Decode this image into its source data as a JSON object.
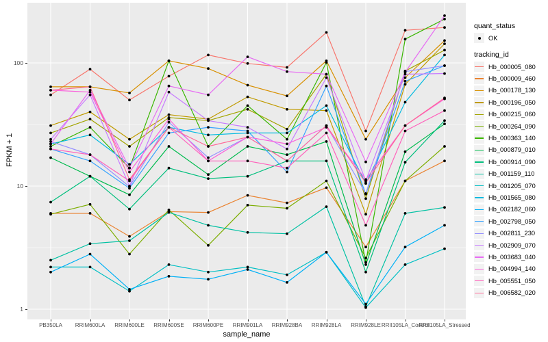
{
  "legend": {
    "quant_status_title": "quant_status",
    "quant_status_items": [
      {
        "label": "OK",
        "marker": "point",
        "color": "#000000"
      }
    ],
    "tracking_id_title": "tracking_id"
  },
  "colors": {
    "panel_bg": "#EBEBEB",
    "gridline": "#FFFFFF",
    "legend_key_bg": "#F2F2F2",
    "tick_label": "#4D4D4D",
    "point": "#000000"
  },
  "chart_data": {
    "type": "line",
    "title": "",
    "xlabel": "sample_name",
    "ylabel": "FPKM + 1",
    "yscale": "log10",
    "yticks": [
      1,
      10,
      100
    ],
    "ylim": [
      1,
      316
    ],
    "grid": true,
    "legend_position": "right",
    "point_marker": {
      "shape": "point",
      "color": "#000000",
      "meaning": "quant_status = OK"
    },
    "categories": [
      "PB350LA",
      "RRIM600LA",
      "RRIM600LE",
      "RRIM600SE",
      "RRIM600PE",
      "RRIM901LA",
      "RRIM928BA",
      "RRIM928LA",
      "RRIM928LE",
      "RRII105LA_Control",
      "RRII105LA_Stressed"
    ],
    "series": [
      {
        "name": "Hb_000005_080",
        "color": "#F8766D",
        "values": [
          55,
          89,
          50,
          78,
          116,
          99,
          92,
          177,
          28,
          184,
          194
        ]
      },
      {
        "name": "Hb_000009_460",
        "color": "#EA8331",
        "values": [
          6.0,
          6.0,
          3.9,
          6.2,
          6.1,
          8.4,
          7.3,
          9.7,
          3.2,
          11,
          16
        ]
      },
      {
        "name": "Hb_000178_130",
        "color": "#D89000",
        "values": [
          64,
          64,
          57,
          104,
          90,
          66,
          54,
          104,
          24,
          76,
          152
        ]
      },
      {
        "name": "Hb_000196_050",
        "color": "#C09B00",
        "values": [
          31,
          40,
          24,
          38,
          35,
          53,
          42,
          41,
          5.9,
          67,
          143
        ]
      },
      {
        "name": "Hb_000215_060",
        "color": "#A3A500",
        "values": [
          27,
          35,
          21,
          36,
          34,
          42,
          29,
          81,
          7.9,
          86,
          127
        ]
      },
      {
        "name": "Hb_000264_090",
        "color": "#7CAE00",
        "values": [
          5.9,
          7.1,
          2.8,
          6.4,
          3.3,
          7.0,
          6.6,
          11,
          2.6,
          11,
          21
        ]
      },
      {
        "name": "Hb_000363_140",
        "color": "#39B600",
        "values": [
          21,
          30,
          14,
          104,
          21,
          45,
          24,
          101,
          2.4,
          156,
          227
        ]
      },
      {
        "name": "Hb_000879_010",
        "color": "#00BB4E",
        "values": [
          17,
          12,
          8.5,
          21,
          12.4,
          21,
          18,
          23,
          2.3,
          19,
          32
        ]
      },
      {
        "name": "Hb_000914_090",
        "color": "#00BF7D",
        "values": [
          7.4,
          12,
          6.5,
          14,
          11.5,
          12,
          16,
          16,
          2.0,
          15.6,
          34
        ]
      },
      {
        "name": "Hb_001159_110",
        "color": "#00C1A3",
        "values": [
          2.5,
          3.4,
          3.6,
          6.1,
          4.8,
          4.2,
          4.1,
          6.8,
          1.05,
          6.0,
          6.7
        ]
      },
      {
        "name": "Hb_001205_070",
        "color": "#00BFC4",
        "values": [
          2.2,
          2.2,
          1.4,
          2.3,
          2.0,
          2.2,
          1.9,
          2.9,
          1.03,
          2.3,
          3.1
        ]
      },
      {
        "name": "Hb_001565_080",
        "color": "#00BAE0",
        "values": [
          22,
          26,
          15,
          30,
          26,
          27,
          27,
          45,
          10.5,
          48,
          116
        ]
      },
      {
        "name": "Hb_002182_060",
        "color": "#00B0F6",
        "values": [
          2.0,
          2.8,
          1.45,
          1.85,
          1.75,
          2.1,
          1.65,
          2.9,
          1.1,
          3.2,
          4.8
        ]
      },
      {
        "name": "Hb_002798_050",
        "color": "#35A2FF",
        "values": [
          20,
          16,
          9.6,
          27,
          30,
          28,
          13,
          65,
          8.6,
          71,
          95
        ]
      },
      {
        "name": "Hb_002811_230",
        "color": "#9590FF",
        "values": [
          23,
          18,
          9.9,
          33,
          17,
          25,
          16,
          31,
          8.7,
          85,
          95
        ]
      },
      {
        "name": "Hb_002909_070",
        "color": "#C77CFF",
        "values": [
          24,
          55,
          10,
          58,
          34,
          30,
          20,
          76,
          11,
          81,
          82
        ]
      },
      {
        "name": "Hb_003683_040",
        "color": "#E76BF3",
        "values": [
          22,
          60,
          14,
          65,
          55,
          112,
          85,
          81,
          15.7,
          84,
          242
        ]
      },
      {
        "name": "Hb_004994_140",
        "color": "#FA62DB",
        "values": [
          60,
          58,
          13,
          35,
          16,
          25,
          22,
          30,
          11.3,
          31,
          51
        ]
      },
      {
        "name": "Hb_005551_050",
        "color": "#FF62BC",
        "values": [
          20,
          18,
          11,
          30,
          16,
          16,
          14,
          27,
          4.8,
          28,
          41
        ]
      },
      {
        "name": "Hb_006582_020",
        "color": "#FF6A98",
        "values": [
          60,
          64,
          11.3,
          30,
          21,
          25,
          16,
          31,
          10.6,
          31,
          52
        ]
      }
    ]
  }
}
